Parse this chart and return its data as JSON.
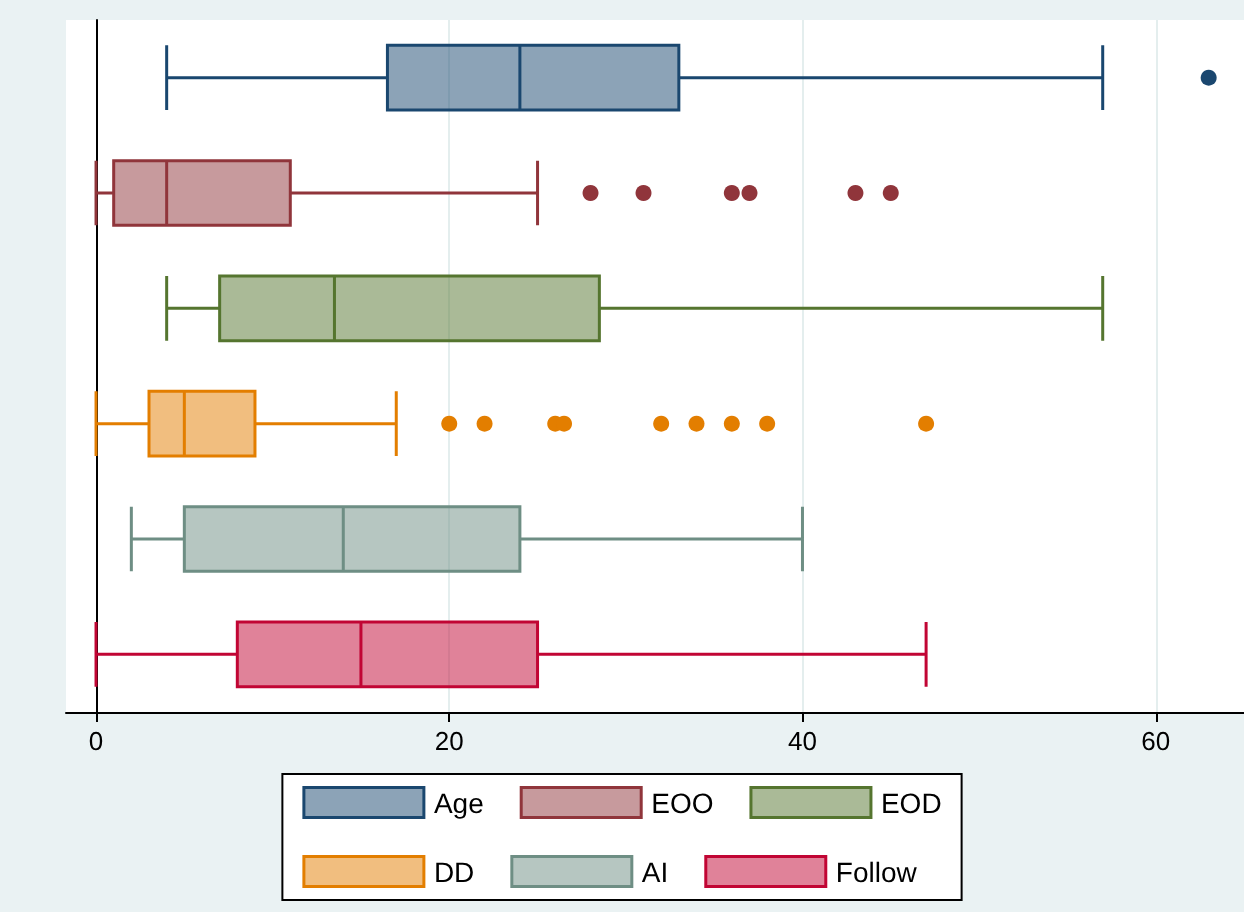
{
  "chart_data": {
    "type": "box",
    "orientation": "horizontal",
    "categories": [
      null,
      null,
      null,
      null,
      null,
      null
    ],
    "series": [
      {
        "name": "Age",
        "color": "#1a476f",
        "boxes": [
          {
            "low": 4,
            "q1": 16.5,
            "median": 24,
            "q3": 33,
            "high": 57,
            "outliers": [
              63
            ]
          },
          null,
          null,
          null,
          null,
          null
        ]
      },
      {
        "name": "EOO",
        "color": "#90353b",
        "boxes": [
          null,
          {
            "low": 0,
            "q1": 1,
            "median": 4,
            "q3": 11,
            "high": 25,
            "outliers": [
              28,
              31,
              36,
              37,
              43,
              45
            ]
          },
          null,
          null,
          null,
          null
        ]
      },
      {
        "name": "EOD",
        "color": "#55752f",
        "boxes": [
          null,
          null,
          {
            "low": 4,
            "q1": 7,
            "median": 13.5,
            "q3": 28.5,
            "high": 57
          },
          null,
          null,
          null
        ]
      },
      {
        "name": "DD",
        "color": "#e37e00",
        "boxes": [
          null,
          null,
          null,
          {
            "low": 0,
            "q1": 3,
            "median": 5,
            "q3": 9,
            "high": 17,
            "outliers": [
              20,
              22,
              26,
              26.5,
              32,
              34,
              36,
              38,
              47
            ]
          },
          null,
          null
        ]
      },
      {
        "name": "AI",
        "color": "#6e8e84",
        "boxes": [
          null,
          null,
          null,
          null,
          {
            "low": 2,
            "q1": 5,
            "median": 14,
            "q3": 24,
            "high": 40
          },
          null
        ]
      },
      {
        "name": "Follow",
        "color": "#c10534",
        "boxes": [
          null,
          null,
          null,
          null,
          null,
          {
            "low": 0,
            "q1": 8,
            "median": 15,
            "q3": 25,
            "high": 47
          }
        ]
      }
    ],
    "xlim": [
      -1.7,
      65
    ],
    "xticks": [
      0,
      20,
      40,
      60
    ],
    "grid": "x",
    "legend": "bottom",
    "tick_labels": "x"
  }
}
